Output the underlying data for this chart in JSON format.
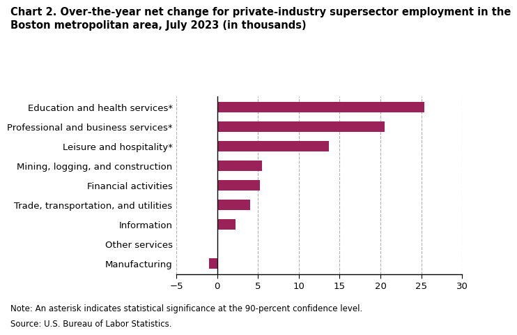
{
  "title_line1": "Chart 2. Over-the-year net change for private-industry supersector employment in the",
  "title_line2": "Boston metropolitan area, July 2023 (in thousands)",
  "categories": [
    "Manufacturing",
    "Other services",
    "Information",
    "Trade, transportation, and utilities",
    "Financial activities",
    "Mining, logging, and construction",
    "Leisure and hospitality*",
    "Professional and business services*",
    "Education and health services*"
  ],
  "values": [
    -1.0,
    0.0,
    2.2,
    4.0,
    5.2,
    5.5,
    13.7,
    20.5,
    25.4
  ],
  "bar_color": "#9b2259",
  "xlim": [
    -5,
    30
  ],
  "xticks": [
    -5,
    0,
    5,
    10,
    15,
    20,
    25,
    30
  ],
  "grid_color": "#b0b0b0",
  "background_color": "#ffffff",
  "note_line1": "Note: An asterisk indicates statistical significance at the 90-percent confidence level.",
  "note_line2": "Source: U.S. Bureau of Labor Statistics.",
  "title_fontsize": 10.5,
  "label_fontsize": 9.5,
  "tick_fontsize": 9.5,
  "note_fontsize": 8.5
}
